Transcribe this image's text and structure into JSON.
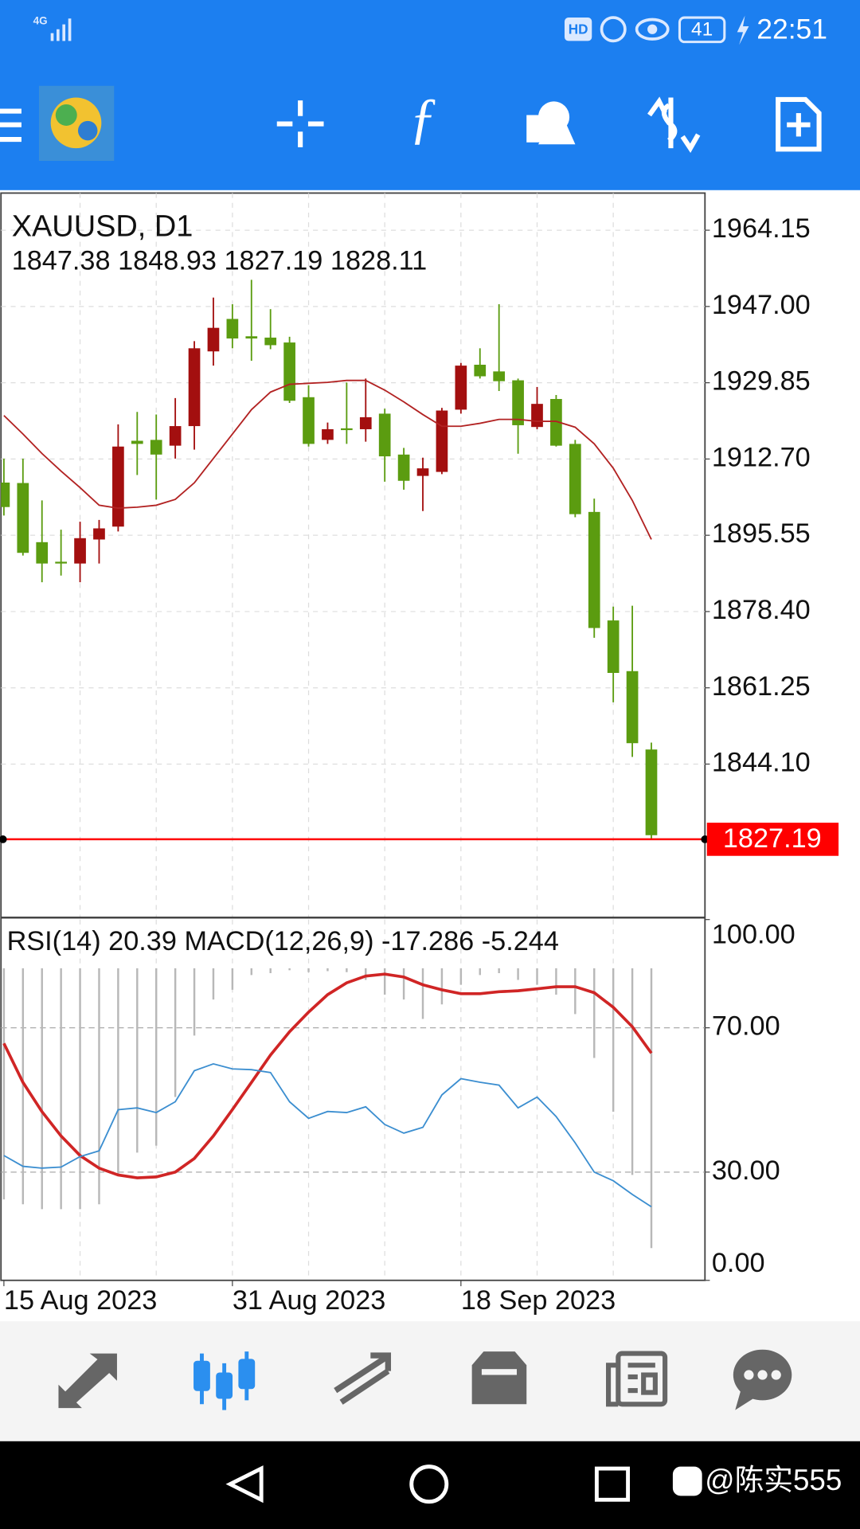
{
  "status_bar": {
    "network": "4G",
    "hd": "HD",
    "battery": "41",
    "time": "22:51"
  },
  "chart_data": [
    {
      "type": "candlestick",
      "title": "XAUUSD, D1",
      "categories": [
        "15 Aug 2023",
        null,
        null,
        null,
        null,
        null,
        null,
        null,
        null,
        null,
        null,
        null,
        "31 Aug 2023",
        null,
        null,
        null,
        null,
        null,
        null,
        null,
        null,
        null,
        null,
        null,
        "18 Sep 2023",
        null,
        null,
        null,
        null,
        null,
        null,
        null,
        null,
        null,
        null
      ],
      "open": [
        1907.4,
        1907.3,
        1894,
        1889.6,
        1889.2,
        1894.6,
        1897.5,
        1916.8,
        1917,
        1915.7,
        1920.1,
        1936.9,
        1944.2,
        1940.3,
        1940,
        1938.9,
        1926.6,
        1917,
        1919.6,
        1919.4,
        1922.9,
        1913.7,
        1908.9,
        1909.8,
        1923.8,
        1933.9,
        1932.4,
        1930.4,
        1919.9,
        1926.2,
        1916.1,
        1900.8,
        1876.4,
        1865,
        1847.38
      ],
      "high": [
        1912.8,
        1912.8,
        1903.4,
        1896.8,
        1898.6,
        1899,
        1920.5,
        1923.3,
        1922.7,
        1926.4,
        1939.2,
        1949,
        1947.5,
        1953,
        1946.4,
        1940.2,
        1929.3,
        1920.9,
        1929.9,
        1930.8,
        1924,
        1915.2,
        1913,
        1924.2,
        1934.3,
        1937.6,
        1947.5,
        1930.8,
        1928.9,
        1927.1,
        1917,
        1903.8,
        1879.5,
        1879.7,
        1848.93
      ],
      "low": [
        1900,
        1891,
        1885,
        1886.5,
        1885,
        1889.2,
        1896.4,
        1909.1,
        1903.6,
        1912.8,
        1914.8,
        1933.7,
        1937.6,
        1934.8,
        1937.4,
        1925.3,
        1915.5,
        1916.1,
        1916.1,
        1916.6,
        1907.6,
        1905.8,
        1901,
        1909.3,
        1922.9,
        1930.8,
        1928,
        1913.9,
        1919.4,
        1915.5,
        1899.6,
        1872.5,
        1858,
        1845.7,
        1827.19
      ],
      "close": [
        1901.9,
        1891.6,
        1889.2,
        1889.2,
        1894.9,
        1897.1,
        1915.5,
        1916.1,
        1913.7,
        1920.1,
        1937.6,
        1942.2,
        1939.8,
        1939.8,
        1938.3,
        1925.8,
        1916.1,
        1919.4,
        1919.2,
        1922.1,
        1913.3,
        1907.8,
        1910.6,
        1923.6,
        1933.7,
        1931.3,
        1930.2,
        1920.3,
        1925.1,
        1915.7,
        1900.3,
        1874.7,
        1864.6,
        1848.8,
        1828.11
      ],
      "bull_color": "#a30f0f",
      "bear_color": "#5b9c10",
      "moving_average": {
        "color": "#b22222",
        "values": [
          1922.48,
          1918.32,
          1913.93,
          1909.98,
          1906.26,
          1902.31,
          1901.65,
          1901.87,
          1902.31,
          1903.62,
          1907.35,
          1912.83,
          1918.32,
          1923.8,
          1927.75,
          1929.5,
          1929.72,
          1929.94,
          1930.38,
          1930.38,
          1928.19,
          1925.55,
          1922.7,
          1920.07,
          1920.07,
          1920.73,
          1921.61,
          1921.61,
          1921.17,
          1921.17,
          1919.85,
          1916.12,
          1910.64,
          1903.39,
          1894.62
        ]
      },
      "price_line": {
        "value": 1827.19,
        "color": "#ff0000"
      },
      "ylim": [
        1809.8,
        1972.5
      ],
      "yticks": [
        1964.15,
        {
          "value": 1947,
          "label": "1947.00"
        },
        1929.85,
        {
          "value": 1912.7,
          "label": "1912.70"
        },
        1895.55,
        {
          "value": 1878.4,
          "label": "1878.40"
        },
        1861.25,
        {
          "value": 1844.1,
          "label": "1844.10"
        }
      ],
      "grid": true
    },
    {
      "type": "oscillator",
      "rsi": {
        "name": "RSI(14)",
        "color": "#3b8ed0",
        "values": [
          34.6,
          31.6,
          31.1,
          31.4,
          34.3,
          35.9,
          47.3,
          47.8,
          46.5,
          49.5,
          58.1,
          60.0,
          58.6,
          58.4,
          57.6,
          49.5,
          44.9,
          46.8,
          46.5,
          48.1,
          43.2,
          40.8,
          42.4,
          51.4,
          55.9,
          54.9,
          54.1,
          47.8,
          50.8,
          45.4,
          38.1,
          30.0,
          27.6,
          23.8,
          20.39
        ]
      },
      "macd": {
        "name": "MACD(12,26,9)",
        "histogram_color": "#b8b8b8",
        "signal_color": "#d02525",
        "main": [
          -14.28,
          -14.58,
          -14.88,
          -14.88,
          -14.88,
          -14.58,
          -12.77,
          -11.39,
          -10.96,
          -7.95,
          -4.16,
          -1.93,
          -1.33,
          -0.42,
          -0.3,
          -0.12,
          -0.24,
          -0.18,
          -0.24,
          -0.72,
          -1.63,
          -1.93,
          -3.13,
          -2.23,
          -1.02,
          -0.42,
          -0.3,
          -0.72,
          -1.02,
          -1.63,
          -2.83,
          -5.54,
          -8.86,
          -12.77,
          -17.286
        ],
        "signal": [
          -4.64,
          -7.05,
          -8.86,
          -10.36,
          -11.57,
          -12.35,
          -12.77,
          -12.95,
          -12.89,
          -12.59,
          -11.75,
          -10.36,
          -8.73,
          -7.05,
          -5.36,
          -3.92,
          -2.71,
          -1.63,
          -0.9,
          -0.48,
          -0.36,
          -0.54,
          -1.02,
          -1.33,
          -1.57,
          -1.57,
          -1.45,
          -1.39,
          -1.27,
          -1.14,
          -1.14,
          -1.51,
          -2.41,
          -3.61,
          -5.244
        ]
      },
      "ylim": [
        0,
        100
      ],
      "yticks": [
        {
          "value": 100,
          "label": "100.00"
        },
        {
          "value": 70,
          "label": "70.00"
        },
        {
          "value": 30,
          "label": "30.00"
        },
        {
          "value": 0,
          "label": "0.00"
        }
      ],
      "y2lim": [
        -19.28,
        3.01
      ],
      "grid": true
    }
  ],
  "watermark": "@陈实555"
}
